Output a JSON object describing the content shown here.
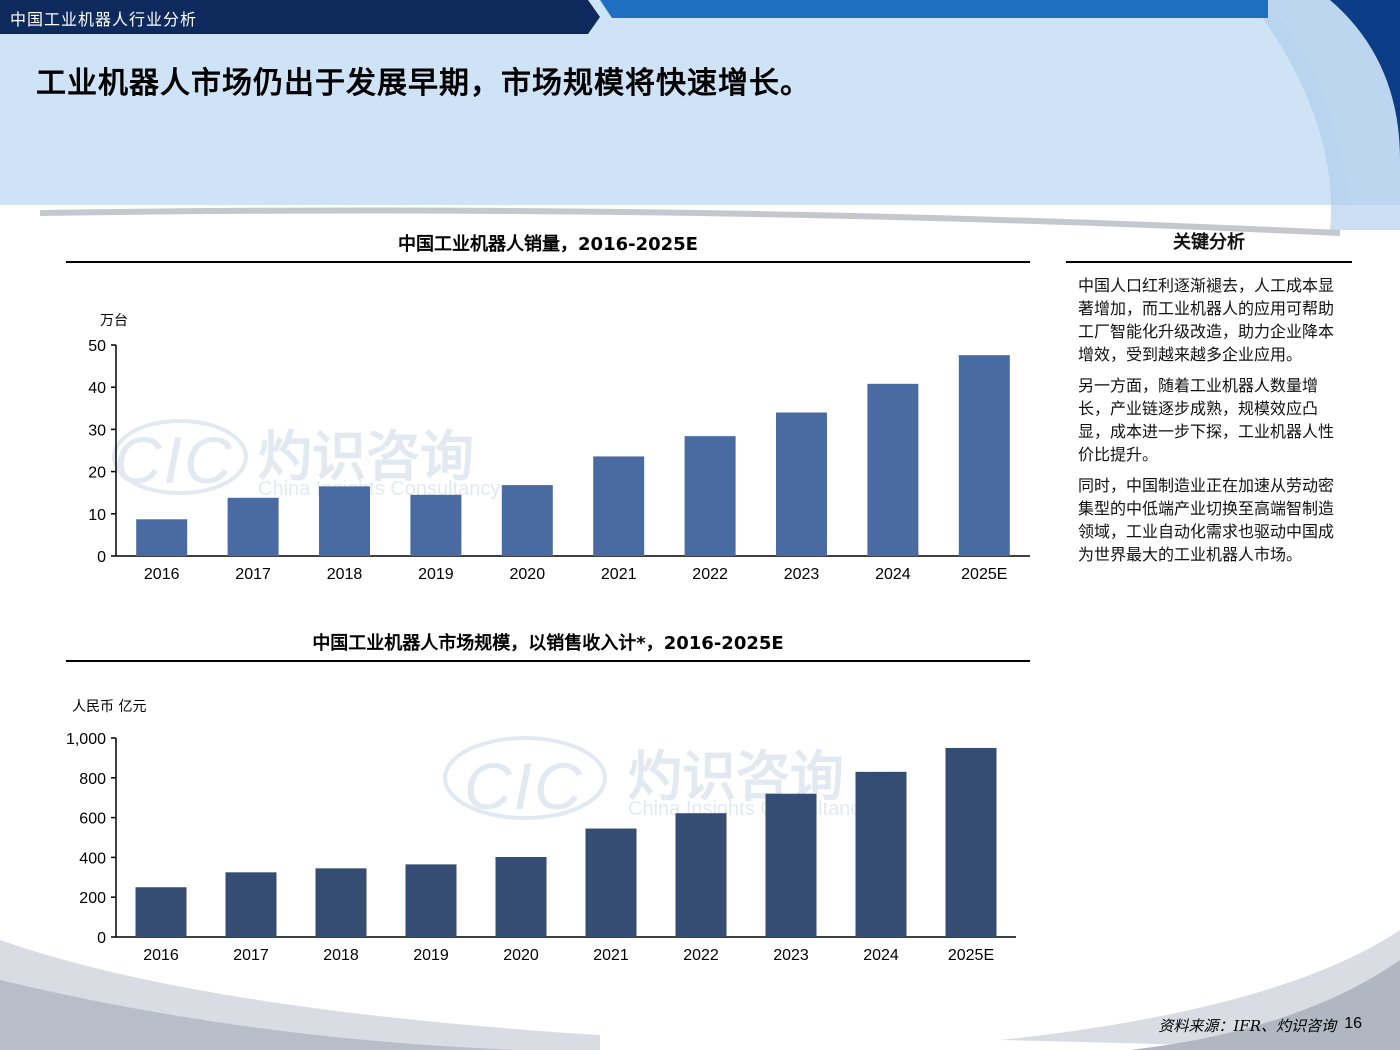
{
  "header": {
    "section": "中国工业机器人行业分析"
  },
  "headline": "工业机器人市场仍出于发展早期，市场规模将快速增长。",
  "watermark": {
    "logo": "CIC",
    "cn": "灼识咨询",
    "en": "China Insights Consultancy"
  },
  "colors": {
    "bar1": "#4a6ba1",
    "bar2": "#354d72",
    "banner": "#cfe3f7",
    "header": "#0e2a5c"
  },
  "chart_data": [
    {
      "type": "bar",
      "title": "中国工业机器人销量，2016-2025E",
      "ylabel": "万台",
      "categories": [
        "2016",
        "2017",
        "2018",
        "2019",
        "2020",
        "2021",
        "2022",
        "2023",
        "2024",
        "2025E"
      ],
      "values": [
        8.7,
        13.8,
        16.5,
        14.5,
        16.8,
        23.6,
        28.4,
        34,
        40.8,
        47.6
      ],
      "ylim": [
        0,
        50
      ],
      "yticks": [
        "0",
        "10",
        "20",
        "30",
        "40",
        "50"
      ],
      "grid": false
    },
    {
      "type": "bar",
      "title": "中国工业机器人市场规模，以销售收入计*，2016-2025E",
      "ylabel": "人民币 亿元",
      "categories": [
        "2016",
        "2017",
        "2018",
        "2019",
        "2020",
        "2021",
        "2022",
        "2023",
        "2024",
        "2025E"
      ],
      "values": [
        250,
        325,
        345,
        365,
        402,
        545,
        622,
        720,
        830,
        950
      ],
      "ylim": [
        0,
        1000
      ],
      "yticks": [
        "0",
        "200",
        "400",
        "600",
        "800",
        "1,000"
      ],
      "grid": false
    }
  ],
  "side": {
    "title": "关键分析",
    "paragraphs": [
      "中国人口红利逐渐褪去，人工成本显著增加，而工业机器人的应用可帮助工厂智能化升级改造，助力企业降本增效，受到越来越多企业应用。",
      "另一方面，随着工业机器人数量增长，产业链逐步成熟，规模效应凸显，成本进一步下探，工业机器人性价比提升。",
      "同时，中国制造业正在加速从劳动密集型的中低端产业切换至高端智制造领域，工业自动化需求也驱动中国成为世界最大的工业机器人市场。"
    ]
  },
  "footer": {
    "source": "资料来源：IFR、灼识咨询",
    "page": "16"
  }
}
